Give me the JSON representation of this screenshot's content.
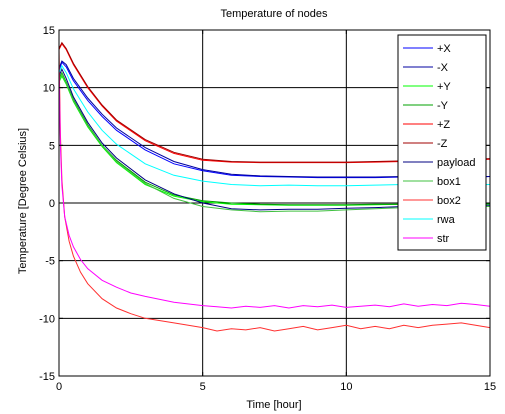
{
  "chart_data": {
    "type": "line",
    "title": "Temperature of nodes",
    "xlabel": "Time [hour]",
    "ylabel": "Temperature [Degree Celsius]",
    "xlim": [
      0,
      15
    ],
    "ylim": [
      -15,
      15
    ],
    "xticks": [
      0,
      5,
      10,
      15
    ],
    "yticks": [
      -15,
      -10,
      -5,
      0,
      5,
      10,
      15
    ],
    "grid": true,
    "legend_position": "top-right",
    "series": [
      {
        "name": "+X",
        "color": "#0000ff",
        "x": [
          0,
          0.1,
          0.25,
          0.5,
          1,
          1.5,
          2,
          3,
          4,
          5,
          6,
          7,
          8,
          9,
          10,
          11,
          12,
          13,
          14,
          15
        ],
        "y": [
          11.5,
          12.2,
          11.8,
          10.6,
          8.9,
          7.5,
          6.3,
          4.6,
          3.4,
          2.8,
          2.4,
          2.3,
          2.25,
          2.2,
          2.2,
          2.2,
          2.25,
          2.25,
          2.2,
          2.3
        ]
      },
      {
        "name": "-X",
        "color": "#0000a0",
        "x": [
          0,
          0.1,
          0.25,
          0.5,
          1,
          1.5,
          2,
          3,
          4,
          5,
          6,
          7,
          8,
          9,
          10,
          11,
          12,
          13,
          14,
          15
        ],
        "y": [
          11.7,
          12.3,
          12.0,
          10.8,
          9.1,
          7.7,
          6.5,
          4.8,
          3.6,
          2.9,
          2.5,
          2.35,
          2.3,
          2.25,
          2.25,
          2.25,
          2.3,
          2.3,
          2.25,
          2.3
        ]
      },
      {
        "name": "+Y",
        "color": "#00ff00",
        "x": [
          0,
          0.1,
          0.25,
          0.5,
          1,
          1.5,
          2,
          3,
          4,
          5,
          6,
          7,
          8,
          9,
          10,
          11,
          12,
          13,
          14,
          15
        ],
        "y": [
          10.5,
          11.0,
          10.3,
          8.8,
          6.6,
          4.9,
          3.5,
          1.6,
          0.6,
          0.1,
          -0.1,
          -0.15,
          -0.2,
          -0.2,
          -0.2,
          -0.15,
          -0.1,
          -0.15,
          -0.1,
          -0.1
        ]
      },
      {
        "name": "-Y",
        "color": "#00a000",
        "x": [
          0,
          0.1,
          0.25,
          0.5,
          1,
          1.5,
          2,
          3,
          4,
          5,
          6,
          7,
          8,
          9,
          10,
          11,
          12,
          13,
          14,
          15
        ],
        "y": [
          10.8,
          11.3,
          10.5,
          9.0,
          6.8,
          5.0,
          3.7,
          1.8,
          0.7,
          0.2,
          0.0,
          -0.1,
          -0.15,
          -0.15,
          -0.15,
          -0.1,
          -0.1,
          -0.1,
          -0.05,
          -0.05
        ]
      },
      {
        "name": "+Z",
        "color": "#ff0000",
        "x": [
          0,
          0.1,
          0.25,
          0.5,
          1,
          1.5,
          2,
          3,
          4,
          5,
          6,
          7,
          8,
          9,
          10,
          11,
          12,
          13,
          14,
          15
        ],
        "y": [
          13.3,
          13.8,
          13.3,
          12.0,
          10.0,
          8.4,
          7.1,
          5.4,
          4.3,
          3.7,
          3.55,
          3.5,
          3.5,
          3.5,
          3.5,
          3.55,
          3.6,
          3.65,
          3.7,
          3.8
        ]
      },
      {
        "name": "-Z",
        "color": "#a00000",
        "x": [
          0,
          0.1,
          0.25,
          0.5,
          1,
          1.5,
          2,
          3,
          4,
          5,
          6,
          7,
          8,
          9,
          10,
          11,
          12,
          13,
          14,
          15
        ],
        "y": [
          13.4,
          13.9,
          13.4,
          12.1,
          10.1,
          8.5,
          7.2,
          5.5,
          4.4,
          3.8,
          3.6,
          3.55,
          3.55,
          3.55,
          3.55,
          3.6,
          3.65,
          3.7,
          3.75,
          3.85
        ]
      },
      {
        "name": "payload",
        "color": "#000080",
        "x": [
          0,
          0.1,
          0.25,
          0.5,
          1,
          1.5,
          2,
          3,
          4,
          5,
          6,
          7,
          8,
          9,
          10,
          11,
          12,
          13,
          14,
          15
        ],
        "y": [
          11.0,
          11.6,
          10.8,
          9.2,
          7.0,
          5.2,
          3.9,
          2.0,
          0.8,
          0.0,
          -0.5,
          -0.6,
          -0.55,
          -0.55,
          -0.45,
          -0.4,
          -0.3,
          -0.25,
          -0.2,
          -0.2
        ]
      },
      {
        "name": "box1",
        "color": "#40c040",
        "x": [
          0,
          0.1,
          0.25,
          0.5,
          1,
          1.5,
          2,
          3,
          4,
          5,
          6,
          7,
          8,
          9,
          10,
          11,
          12,
          13,
          14,
          15
        ],
        "y": [
          10.6,
          11.2,
          10.4,
          8.9,
          6.7,
          5.0,
          3.6,
          1.7,
          0.4,
          -0.3,
          -0.6,
          -0.75,
          -0.7,
          -0.7,
          -0.6,
          -0.5,
          -0.4,
          -0.35,
          -0.3,
          -0.3
        ]
      },
      {
        "name": "box2",
        "color": "#ff3030",
        "x": [
          0,
          0.05,
          0.1,
          0.2,
          0.35,
          0.5,
          0.75,
          1,
          1.5,
          2,
          2.5,
          3,
          4,
          5,
          5.5,
          6,
          6.5,
          7,
          7.5,
          8,
          8.5,
          9,
          9.5,
          10,
          10.5,
          11,
          11.5,
          12,
          12.5,
          13,
          13.5,
          14,
          14.5,
          15
        ],
        "y": [
          13.5,
          6.0,
          2.0,
          -1.2,
          -3.3,
          -4.6,
          -6.0,
          -7.0,
          -8.3,
          -9.1,
          -9.6,
          -10.0,
          -10.4,
          -10.8,
          -11.1,
          -10.9,
          -11.0,
          -10.8,
          -11.1,
          -10.9,
          -10.7,
          -11.0,
          -10.8,
          -10.6,
          -10.9,
          -10.7,
          -10.9,
          -10.6,
          -10.8,
          -10.6,
          -10.5,
          -10.4,
          -10.6,
          -10.8
        ]
      },
      {
        "name": "rwa",
        "color": "#00ffff",
        "x": [
          0,
          0.1,
          0.25,
          0.5,
          1,
          1.5,
          2,
          3,
          4,
          5,
          6,
          7,
          8,
          9,
          10,
          11,
          12,
          13,
          14,
          15
        ],
        "y": [
          11.3,
          11.9,
          11.3,
          9.9,
          7.9,
          6.3,
          5.1,
          3.4,
          2.4,
          1.9,
          1.6,
          1.5,
          1.55,
          1.5,
          1.5,
          1.55,
          1.6,
          1.6,
          1.55,
          1.6
        ]
      },
      {
        "name": "str",
        "color": "#ff00ff",
        "x": [
          0,
          0.05,
          0.1,
          0.2,
          0.35,
          0.5,
          0.75,
          1,
          1.5,
          2,
          2.5,
          3,
          4,
          5,
          5.5,
          6,
          6.5,
          7,
          7.5,
          8,
          8.5,
          9,
          9.5,
          10,
          10.5,
          11,
          11.5,
          12,
          12.5,
          13,
          13.5,
          14,
          14.5,
          15
        ],
        "y": [
          12.0,
          5.0,
          1.5,
          -1.2,
          -2.8,
          -3.8,
          -4.9,
          -5.7,
          -6.7,
          -7.3,
          -7.8,
          -8.1,
          -8.6,
          -8.9,
          -9.0,
          -9.1,
          -8.95,
          -9.05,
          -8.9,
          -9.1,
          -8.9,
          -9.0,
          -8.85,
          -9.05,
          -8.95,
          -8.85,
          -9.0,
          -8.75,
          -8.95,
          -8.8,
          -8.9,
          -8.7,
          -8.8,
          -8.95
        ]
      }
    ]
  }
}
